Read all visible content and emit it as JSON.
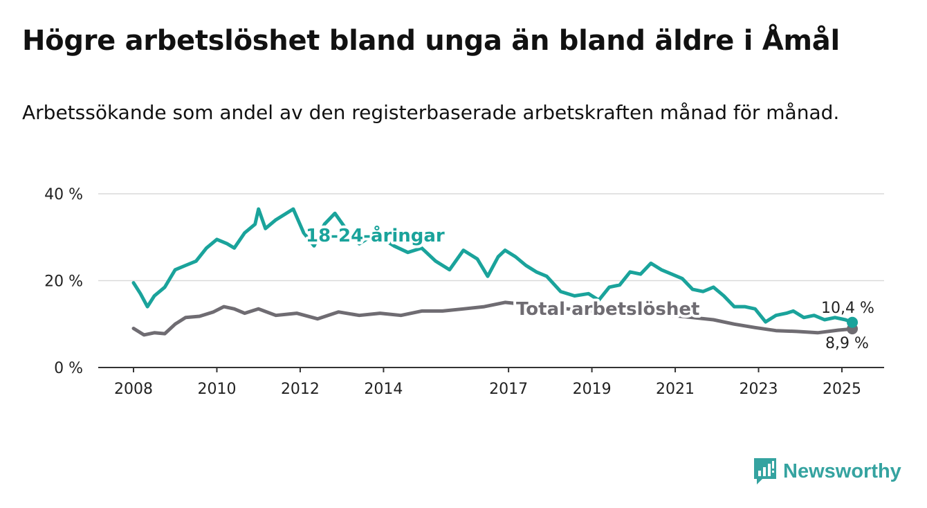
{
  "title": "Högre arbetslöshet bland unga än bland äldre i Åmål",
  "subtitle": "Arbetssökande som andel av den registerbaserade arbetskraften månad för månad.",
  "brand": {
    "name": "Newsworthy",
    "icon": "newsworthy-logo-icon",
    "color": "#35a3a0"
  },
  "chart_data": {
    "type": "line",
    "title": "Högre arbetslöshet bland unga än bland äldre i Åmål",
    "subtitle": "Arbetssökande som andel av den registerbaserade arbetskraften månad för månad.",
    "xlabel": "",
    "ylabel": "",
    "xlim": [
      "2008-01",
      "2025-04"
    ],
    "ylim": [
      0,
      40
    ],
    "y_ticks": [
      0,
      20,
      40
    ],
    "y_tick_labels": [
      "0 %",
      "20 %",
      "40 %"
    ],
    "x_ticks": [
      "2008",
      "2010",
      "2012",
      "2014",
      "2017",
      "2019",
      "2021",
      "2023",
      "2025"
    ],
    "grid": "horizontal",
    "legend": "none",
    "series": [
      {
        "name": "18-24-åringar",
        "color": "#1aa39b",
        "end_label": "10,4 %",
        "points": [
          [
            "2008-01",
            19.5
          ],
          [
            "2008-03",
            17.0
          ],
          [
            "2008-05",
            14.0
          ],
          [
            "2008-07",
            16.5
          ],
          [
            "2008-10",
            18.5
          ],
          [
            "2009-01",
            22.5
          ],
          [
            "2009-04",
            23.5
          ],
          [
            "2009-07",
            24.5
          ],
          [
            "2009-10",
            27.5
          ],
          [
            "2010-01",
            29.5
          ],
          [
            "2010-04",
            28.5
          ],
          [
            "2010-06",
            27.5
          ],
          [
            "2010-09",
            31.0
          ],
          [
            "2010-12",
            33.0
          ],
          [
            "2011-01",
            36.5
          ],
          [
            "2011-03",
            32.0
          ],
          [
            "2011-06",
            34.0
          ],
          [
            "2011-09",
            35.5
          ],
          [
            "2011-11",
            36.5
          ],
          [
            "2012-02",
            31.0
          ],
          [
            "2012-05",
            28.0
          ],
          [
            "2012-08",
            33.0
          ],
          [
            "2012-11",
            35.5
          ],
          [
            "2013-03",
            31.0
          ],
          [
            "2013-06",
            28.5
          ],
          [
            "2013-09",
            30.0
          ],
          [
            "2014-01",
            29.5
          ],
          [
            "2014-04",
            28.0
          ],
          [
            "2014-08",
            26.5
          ],
          [
            "2014-12",
            27.5
          ],
          [
            "2015-04",
            24.5
          ],
          [
            "2015-08",
            22.5
          ],
          [
            "2015-12",
            27.0
          ],
          [
            "2016-04",
            25.0
          ],
          [
            "2016-07",
            21.0
          ],
          [
            "2016-10",
            25.5
          ],
          [
            "2016-12",
            27.0
          ],
          [
            "2017-03",
            25.5
          ],
          [
            "2017-06",
            23.5
          ],
          [
            "2017-09",
            22.0
          ],
          [
            "2017-12",
            21.0
          ],
          [
            "2018-04",
            17.5
          ],
          [
            "2018-08",
            16.5
          ],
          [
            "2018-12",
            17.0
          ],
          [
            "2019-03",
            15.5
          ],
          [
            "2019-06",
            18.5
          ],
          [
            "2019-09",
            19.0
          ],
          [
            "2019-12",
            22.0
          ],
          [
            "2020-03",
            21.5
          ],
          [
            "2020-06",
            24.0
          ],
          [
            "2020-09",
            22.5
          ],
          [
            "2020-12",
            21.5
          ],
          [
            "2021-03",
            20.5
          ],
          [
            "2021-06",
            18.0
          ],
          [
            "2021-09",
            17.5
          ],
          [
            "2021-12",
            18.5
          ],
          [
            "2022-03",
            16.5
          ],
          [
            "2022-06",
            14.0
          ],
          [
            "2022-09",
            14.0
          ],
          [
            "2022-12",
            13.5
          ],
          [
            "2023-03",
            10.5
          ],
          [
            "2023-06",
            12.0
          ],
          [
            "2023-09",
            12.5
          ],
          [
            "2023-11",
            13.0
          ],
          [
            "2024-02",
            11.5
          ],
          [
            "2024-05",
            12.0
          ],
          [
            "2024-08",
            11.0
          ],
          [
            "2024-11",
            11.5
          ],
          [
            "2025-02",
            11.0
          ],
          [
            "2025-04",
            10.4
          ]
        ]
      },
      {
        "name": "Total arbetslöshet",
        "color": "#6f6c72",
        "end_label": "8,9 %",
        "points": [
          [
            "2008-01",
            9.0
          ],
          [
            "2008-04",
            7.5
          ],
          [
            "2008-07",
            8.0
          ],
          [
            "2008-10",
            7.8
          ],
          [
            "2009-01",
            10.0
          ],
          [
            "2009-04",
            11.5
          ],
          [
            "2009-08",
            11.8
          ],
          [
            "2009-12",
            12.8
          ],
          [
            "2010-03",
            14.0
          ],
          [
            "2010-06",
            13.5
          ],
          [
            "2010-09",
            12.5
          ],
          [
            "2011-01",
            13.5
          ],
          [
            "2011-06",
            12.0
          ],
          [
            "2011-12",
            12.5
          ],
          [
            "2012-06",
            11.2
          ],
          [
            "2012-12",
            12.8
          ],
          [
            "2013-06",
            12.0
          ],
          [
            "2013-12",
            12.5
          ],
          [
            "2014-06",
            12.0
          ],
          [
            "2014-12",
            13.0
          ],
          [
            "2015-06",
            13.0
          ],
          [
            "2015-12",
            13.5
          ],
          [
            "2016-06",
            14.0
          ],
          [
            "2016-12",
            15.0
          ],
          [
            "2017-06",
            14.5
          ],
          [
            "2017-12",
            14.0
          ],
          [
            "2018-06",
            13.5
          ],
          [
            "2018-12",
            13.0
          ],
          [
            "2019-06",
            12.8
          ],
          [
            "2019-12",
            12.5
          ],
          [
            "2020-06",
            12.3
          ],
          [
            "2020-12",
            12.0
          ],
          [
            "2021-06",
            11.5
          ],
          [
            "2021-12",
            11.0
          ],
          [
            "2022-06",
            10.0
          ],
          [
            "2022-12",
            9.2
          ],
          [
            "2023-06",
            8.5
          ],
          [
            "2023-12",
            8.3
          ],
          [
            "2024-06",
            8.0
          ],
          [
            "2024-12",
            8.6
          ],
          [
            "2025-04",
            8.9
          ]
        ]
      }
    ]
  }
}
